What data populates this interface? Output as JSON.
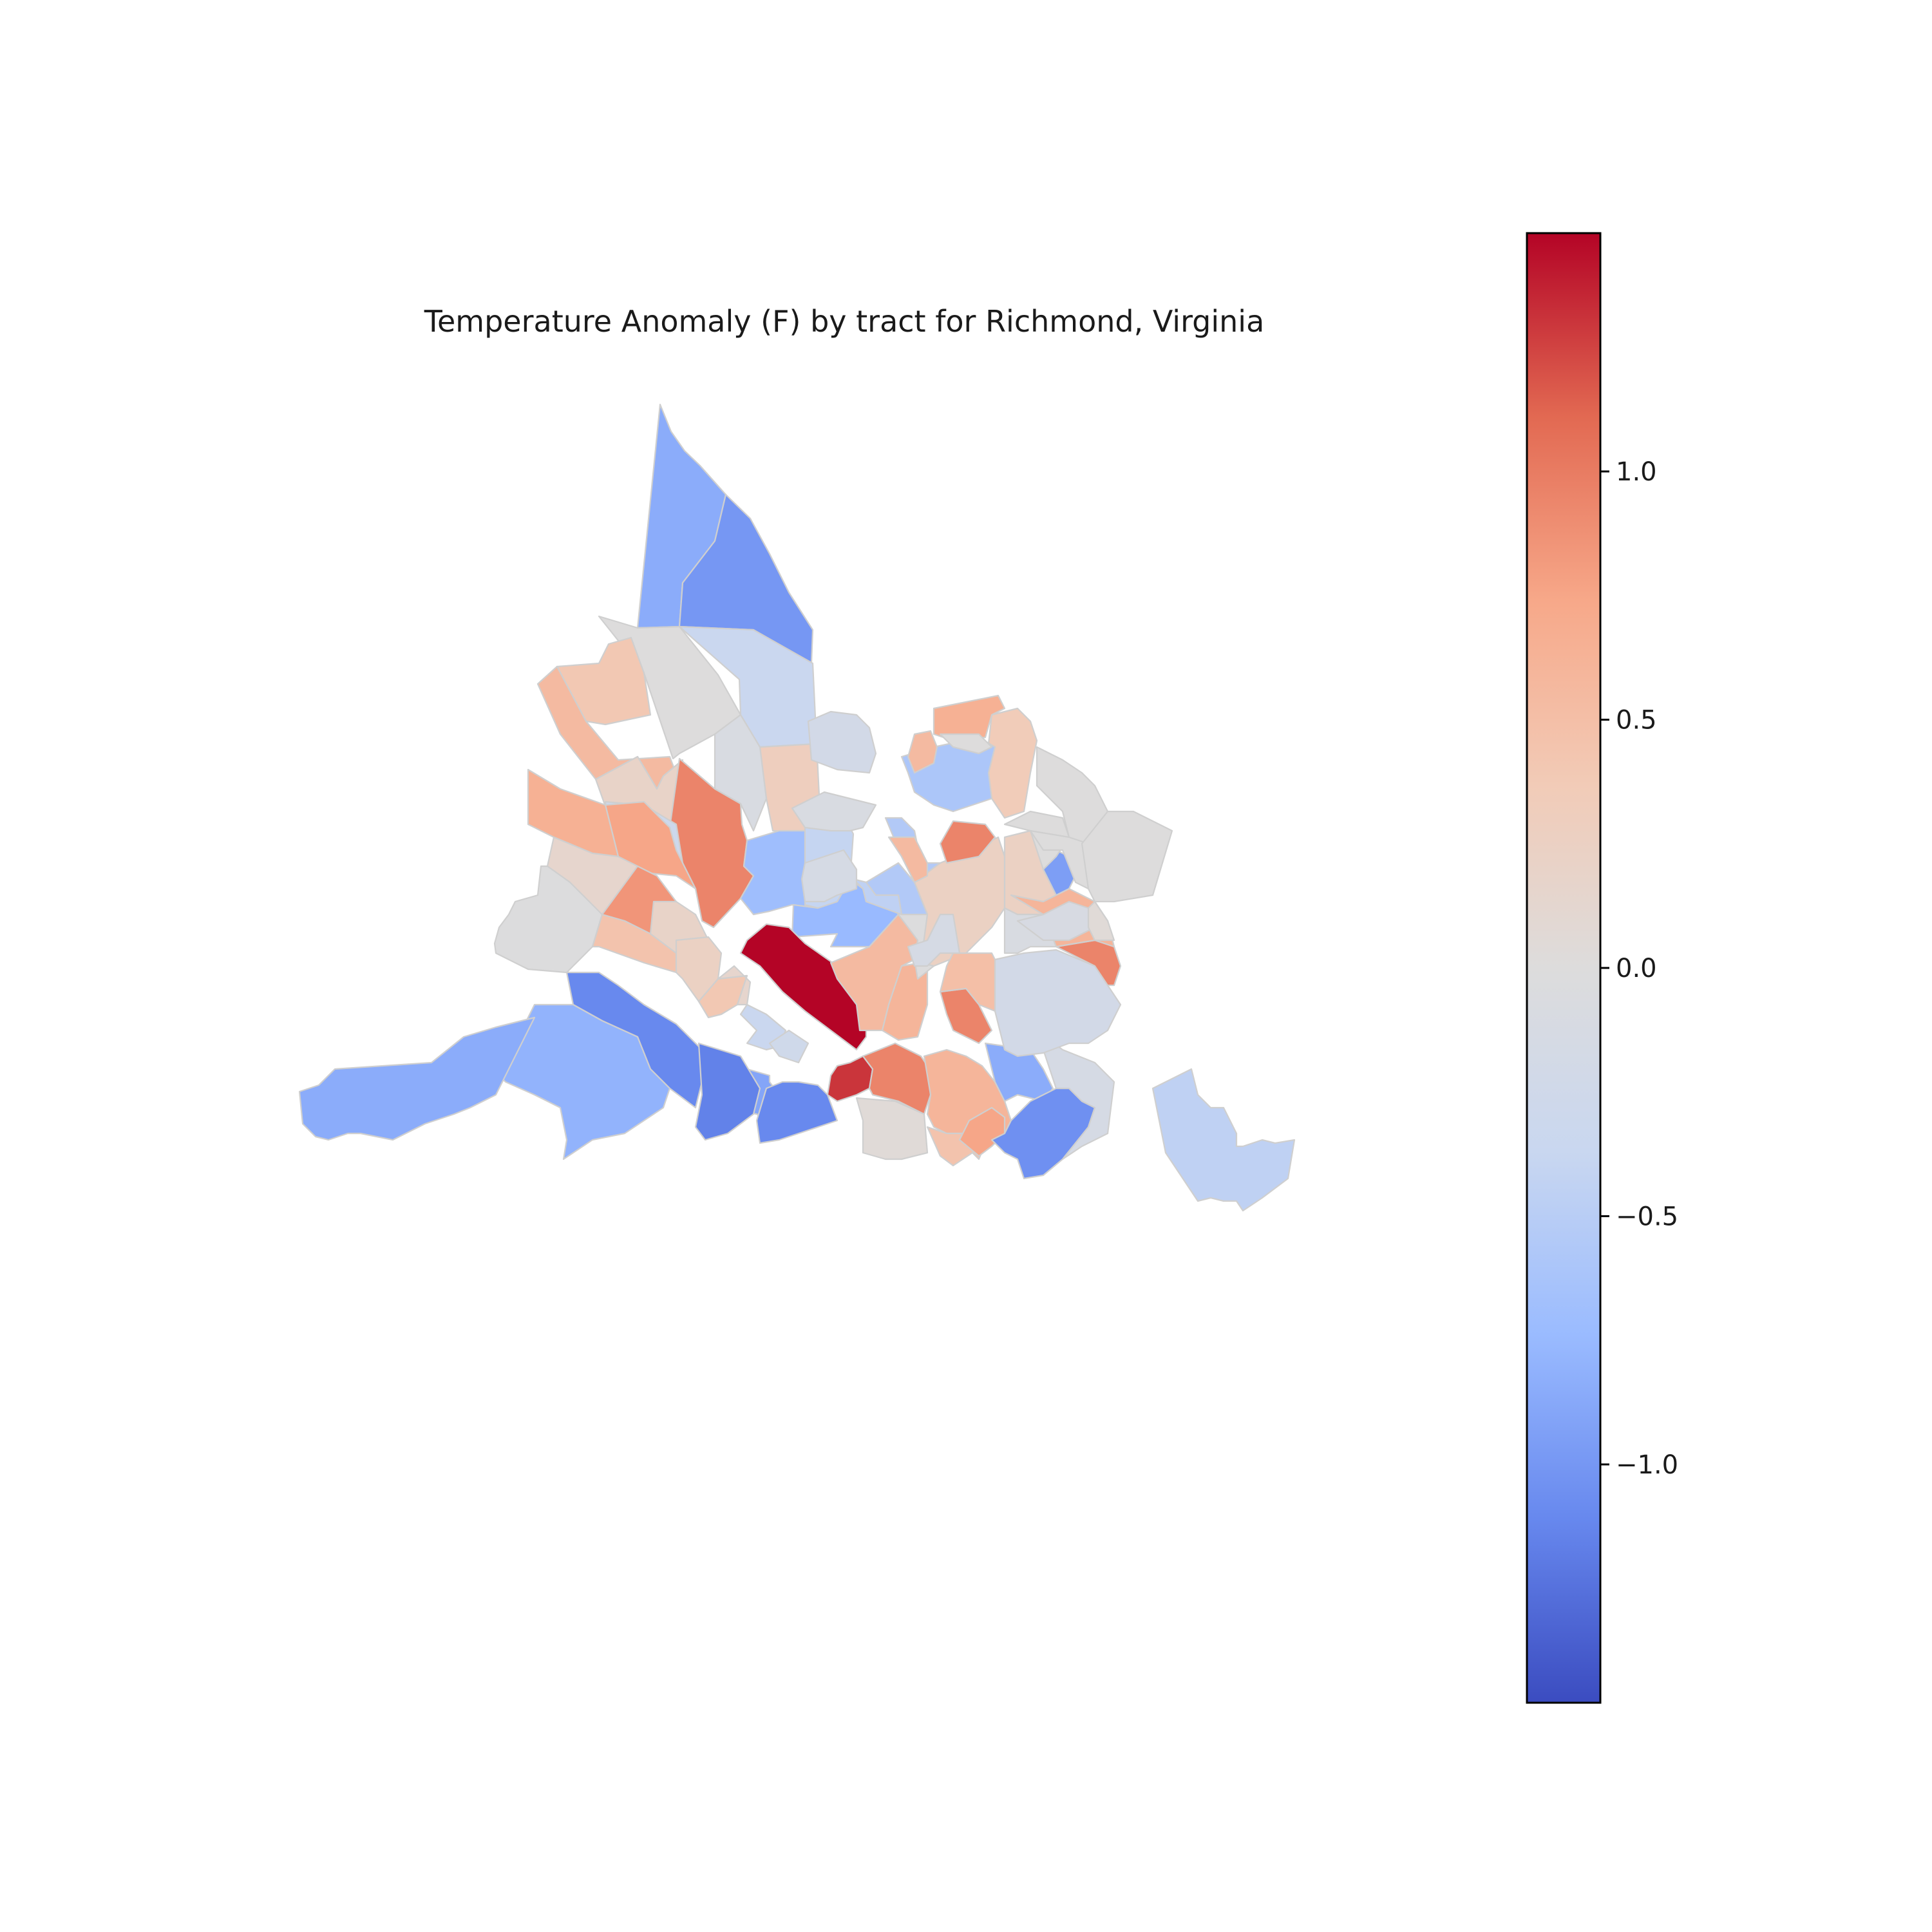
{
  "title": "Temperature Anomaly (F) by tract for Richmond, Virginia",
  "colorbar": {
    "colormap": "coolwarm",
    "vmin": -1.48,
    "vmax": 1.48,
    "stops": [
      "#3b4cc0",
      "#6788ee",
      "#9abbff",
      "#c9d7f0",
      "#dddcdc",
      "#f2cbb7",
      "#f7a889",
      "#e26952",
      "#b40426"
    ],
    "ticks": [
      {
        "value": 1.0,
        "label": "1.0"
      },
      {
        "value": 0.5,
        "label": "0.5"
      },
      {
        "value": 0.0,
        "label": "0.0"
      },
      {
        "value": -0.5,
        "label": "−0.5"
      },
      {
        "value": -1.0,
        "label": "−1.0"
      }
    ]
  },
  "chart_data": {
    "type": "choropleth",
    "variable": "Temperature Anomaly (F)",
    "unit": "F",
    "value_range": [
      -1.48,
      1.48
    ],
    "edge_color": "#cfcfcf",
    "tracts": [
      {
        "value": -0.85
      },
      {
        "value": -1.0
      },
      {
        "value": -0.35
      },
      {
        "value": 0.0
      },
      {
        "value": 0.4
      },
      {
        "value": 0.55
      },
      {
        "value": 0.3
      },
      {
        "value": -0.1
      },
      {
        "value": 0.2
      },
      {
        "value": 0.95
      },
      {
        "value": -0.3
      },
      {
        "value": 0.75
      },
      {
        "value": 0.65
      },
      {
        "value": -0.7
      },
      {
        "value": 0.15
      },
      {
        "value": -0.02
      },
      {
        "value": 0.85
      },
      {
        "value": 0.45
      },
      {
        "value": -0.75
      },
      {
        "value": -0.4
      },
      {
        "value": 0.2
      },
      {
        "value": 0.25
      },
      {
        "value": 1.48
      },
      {
        "value": 0.55
      },
      {
        "value": 0.4
      },
      {
        "value": 0.15
      },
      {
        "value": 0.6
      },
      {
        "value": -0.01
      },
      {
        "value": -0.35
      },
      {
        "value": -0.25
      },
      {
        "value": -0.9
      },
      {
        "value": -1.1
      },
      {
        "value": -0.8
      },
      {
        "value": -1.15
      },
      {
        "value": -1.1
      },
      {
        "value": -0.85
      },
      {
        "value": 1.3
      },
      {
        "value": 0.95
      },
      {
        "value": 0.05
      },
      {
        "value": 0.6
      },
      {
        "value": 0.45
      },
      {
        "value": 0.75
      },
      {
        "value": -0.85
      },
      {
        "value": -1.05
      },
      {
        "value": -0.15
      },
      {
        "value": -0.45
      },
      {
        "value": -0.2
      },
      {
        "value": 0.25
      },
      {
        "value": 0.25
      },
      {
        "value": 0.95
      },
      {
        "value": 0.95
      },
      {
        "value": 0.5
      },
      {
        "value": 0.95
      },
      {
        "value": -0.55
      },
      {
        "value": -0.55
      },
      {
        "value": -0.45
      },
      {
        "value": -0.15
      },
      {
        "value": 0.55
      },
      {
        "value": -0.15
      },
      {
        "value": 0.6
      },
      {
        "value": -0.1
      },
      {
        "value": -0.12
      },
      {
        "value": -0.95
      },
      {
        "value": 0.05
      },
      {
        "value": 0.35
      },
      {
        "value": -0.6
      },
      {
        "value": 0.55
      },
      {
        "value": 0.65
      },
      {
        "value": -0.1
      },
      {
        "value": -0.2
      }
    ]
  }
}
